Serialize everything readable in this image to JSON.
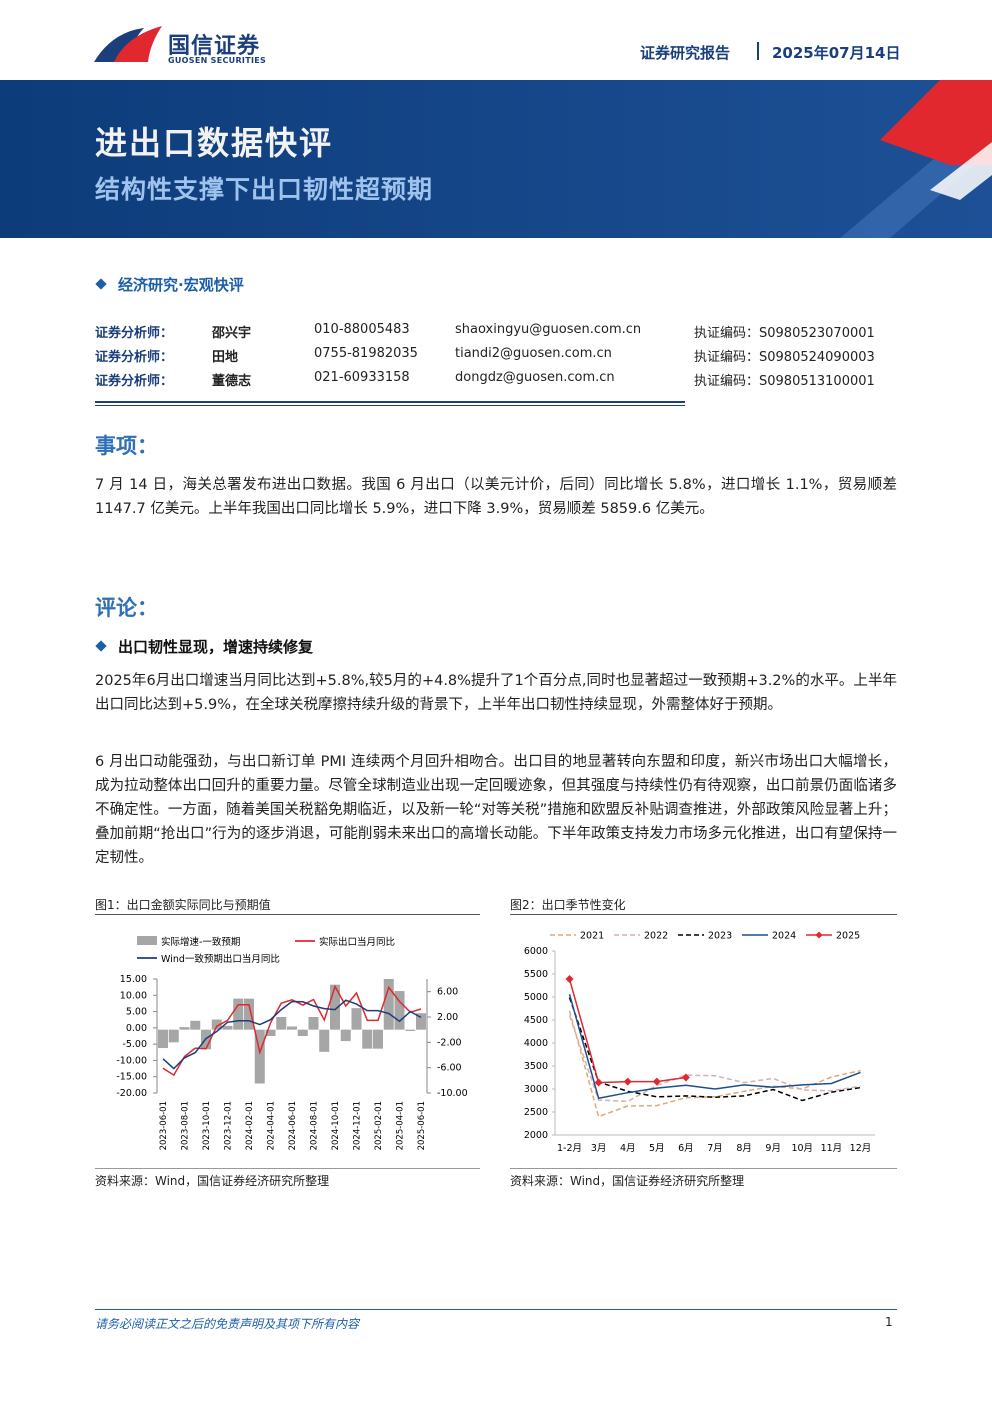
{
  "header": {
    "logo_cn": "国信证券",
    "logo_en": "GUOSEN SECURITIES",
    "report_type": "证券研究报告",
    "date": "2025年07月14日"
  },
  "banner": {
    "title": "进出口数据快评",
    "subtitle": "结构性支撑下出口韧性超预期"
  },
  "category": "经济研究·宏观快评",
  "analysts": [
    [
      "证券分析师：",
      "邵兴宇",
      "010-88005483",
      "shaoxingyu@guosen.com.cn",
      "执证编码：S0980523070001"
    ],
    [
      "证券分析师：",
      "田地",
      "0755-81982035",
      "tiandi2@guosen.com.cn",
      "执证编码：S0980524090003"
    ],
    [
      "证券分析师：",
      "董德志",
      "021-60933158",
      "dongdz@guosen.com.cn",
      "执证编码：S0980513100001"
    ]
  ],
  "sections": [
    {
      "heading": "事项：",
      "paragraphs": [
        "7 月 14 日，海关总署发布进出口数据。我国 6 月出口（以美元计价，后同）同比增长 5.8%，进口增长 1.1%，贸易顺差 1147.7 亿美元。上半年我国出口同比增长 5.9%，进口下降 3.9%，贸易顺差 5859.6 亿美元。"
      ]
    },
    {
      "heading": "评论：",
      "subheading": "出口韧性显现，增速持续修复",
      "paragraphs": [
        "2025年6月出口增速当月同比达到+5.8%,较5月的+4.8%提升了1个百分点,同时也显著超过一致预期+3.2%的水平。上半年出口同比达到+5.9%，在全球关税摩擦持续升级的背景下，上半年出口韧性持续显现，外需整体好于预期。",
        "6 月出口动能强劲，与出口新订单 PMI 连续两个月回升相吻合。出口目的地显著转向东盟和印度，新兴市场出口大幅增长，成为拉动整体出口回升的重要力量。尽管全球制造业出现一定回暖迹象，但其强度与持续性仍有待观察，出口前景仍面临诸多不确定性。一方面，随着美国关税豁免期临近，以及新一轮“对等关税”措施和欧盟反补贴调查推进，外部政策风险显著上升；叠加前期“抢出口”行为的逐步消退，可能削弱未来出口的高增长动能。下半年政策支持发力市场多元化推进，出口有望保持一定韧性。"
      ]
    }
  ],
  "figures": [
    {
      "caption": "图1：出口金额实际同比与预期值",
      "source": "资料来源：Wind，国信证券经济研究所整理"
    },
    {
      "caption": "图2：出口季节性变化",
      "source": "资料来源：Wind，国信证券经济研究所整理"
    }
  ],
  "footer": {
    "disclaimer": "请务必阅读正文之后的免责声明及其项下所有内容",
    "page": "1"
  },
  "chart_data": [
    {
      "type": "combo",
      "categories": [
        "2023-06-01",
        null,
        "2023-08-01",
        null,
        "2023-10-01",
        null,
        "2023-12-01",
        null,
        "2024-02-01",
        null,
        "2024-04-01",
        null,
        "2024-06-01",
        null,
        "2024-08-01",
        null,
        "2024-10-01",
        null,
        "2024-12-01",
        null,
        "2025-02-01",
        null,
        "2025-04-01",
        null,
        "2025-06-01"
      ],
      "ylim": [
        -20,
        15
      ],
      "yticks": [
        {
          "value": 15,
          "label": "15.00"
        },
        {
          "value": 10,
          "label": "10.00"
        },
        {
          "value": 5,
          "label": "5.00"
        },
        {
          "value": 0,
          "label": "0.00"
        },
        {
          "value": -5,
          "label": "-5.00"
        },
        {
          "value": -10,
          "label": "-10.00"
        },
        {
          "value": -15,
          "label": "-15.00"
        },
        {
          "value": -20,
          "label": "-20.00"
        }
      ],
      "y2lim": [
        -10,
        8
      ],
      "y2ticks": [
        {
          "value": 6,
          "label": "6.00"
        },
        {
          "value": 2,
          "label": "2.00"
        },
        {
          "value": -2,
          "label": "-2.00"
        },
        {
          "value": -6,
          "label": "-6.00"
        },
        {
          "value": -10,
          "label": "-10.00"
        }
      ],
      "series": [
        {
          "name": "实际增速-一致预期",
          "type": "bar",
          "axis": "y2",
          "color": "#a6a6a6",
          "values": [
            -2.9,
            -2.0,
            0.4,
            1.4,
            -3.1,
            1.6,
            0.6,
            4.9,
            4.9,
            -8.5,
            -1.0,
            2.0,
            0.5,
            -1.0,
            2.0,
            -3.5,
            7.1,
            -1.8,
            3.4,
            -3.0,
            -3.0,
            8.0,
            6.1,
            -0.2,
            2.6
          ]
        },
        {
          "name": "实际出口当月同比",
          "type": "line",
          "color": "#e0282e",
          "values": [
            -12.4,
            -14.5,
            -8.8,
            -6.2,
            -6.4,
            0.5,
            2.3,
            7.1,
            7.1,
            -7.5,
            1.5,
            7.6,
            8.6,
            7.0,
            8.7,
            2.4,
            12.7,
            6.7,
            10.7,
            2.3,
            2.3,
            12.4,
            8.1,
            4.8,
            5.8
          ]
        },
        {
          "name": "Wind一致预期出口当月同比",
          "type": "line",
          "color": "#1f3d7a",
          "values": [
            -9.5,
            -12.5,
            -9.2,
            -7.6,
            -3.3,
            -1.1,
            1.7,
            2.2,
            2.2,
            1.0,
            2.5,
            5.6,
            8.1,
            8.0,
            6.7,
            5.9,
            5.6,
            8.5,
            7.3,
            5.3,
            5.3,
            4.4,
            2.0,
            5.0,
            3.2
          ]
        }
      ]
    },
    {
      "type": "line",
      "categories": [
        "1-2月",
        "3月",
        "4月",
        "5月",
        "6月",
        "7月",
        "8月",
        "9月",
        "10月",
        "11月",
        "12月"
      ],
      "ylim": [
        2000,
        6000
      ],
      "yticks": [
        6000,
        5500,
        5000,
        4500,
        4000,
        3500,
        3000,
        2500,
        2000
      ],
      "series": [
        {
          "name": "2021",
          "color": "#e0a878",
          "line_style": "dashed",
          "values": [
            4700,
            2400,
            2630,
            2640,
            2810,
            2830,
            2950,
            3060,
            3000,
            3260,
            3400
          ]
        },
        {
          "name": "2022",
          "color": "#d4b0b0",
          "line_style": "dashed",
          "values": [
            4600,
            2760,
            2730,
            3080,
            3300,
            3290,
            3140,
            3230,
            2980,
            2960,
            3060
          ]
        },
        {
          "name": "2023",
          "color": "#000000",
          "line_style": "dashed",
          "values": [
            4990,
            3150,
            2950,
            2830,
            2850,
            2820,
            2850,
            2990,
            2750,
            2930,
            3030
          ]
        },
        {
          "name": "2024",
          "color": "#1f4e8c",
          "line_style": "solid",
          "values": [
            5060,
            2800,
            2920,
            3020,
            3080,
            3000,
            3090,
            3040,
            3090,
            3120,
            3360
          ]
        },
        {
          "name": "2025",
          "color": "#e0282e",
          "line_style": "solid",
          "marker": "diamond",
          "values": [
            5390,
            3140,
            3160,
            3160,
            3250,
            null,
            null,
            null,
            null,
            null,
            null
          ]
        }
      ]
    }
  ]
}
